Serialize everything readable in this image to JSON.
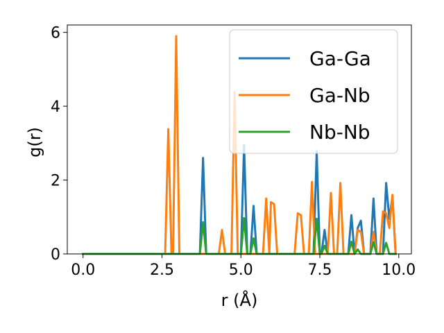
{
  "chart_data": {
    "type": "line",
    "title": "",
    "xlabel": "r (Å)",
    "ylabel": "g(r)",
    "xlim": [
      -0.5,
      10.4
    ],
    "ylim": [
      0,
      6.2
    ],
    "xticks": [
      0.0,
      2.5,
      5.0,
      7.5,
      10.0
    ],
    "xtick_labels": [
      "0.0",
      "2.5",
      "5.0",
      "7.5",
      "10.0"
    ],
    "yticks": [
      0,
      2,
      4,
      6
    ],
    "ytick_labels": [
      "0",
      "2",
      "4",
      "6"
    ],
    "grid": false,
    "legend_position": "top-right",
    "series": [
      {
        "name": "Ga-Ga",
        "color": "#1f77b4",
        "points": [
          [
            0.0,
            0
          ],
          [
            3.7,
            0
          ],
          [
            3.8,
            2.6
          ],
          [
            3.9,
            0
          ],
          [
            5.0,
            0
          ],
          [
            5.1,
            2.95
          ],
          [
            5.2,
            0
          ],
          [
            5.3,
            0
          ],
          [
            5.4,
            1.3
          ],
          [
            5.5,
            0
          ],
          [
            7.3,
            0
          ],
          [
            7.4,
            2.78
          ],
          [
            7.5,
            0
          ],
          [
            7.55,
            0
          ],
          [
            7.65,
            0.65
          ],
          [
            7.75,
            0
          ],
          [
            8.4,
            0
          ],
          [
            8.5,
            1.05
          ],
          [
            8.6,
            0
          ],
          [
            8.7,
            0.7
          ],
          [
            8.8,
            0.9
          ],
          [
            8.9,
            0
          ],
          [
            9.1,
            0
          ],
          [
            9.2,
            1.5
          ],
          [
            9.3,
            0
          ],
          [
            9.5,
            0
          ],
          [
            9.6,
            1.92
          ],
          [
            9.7,
            0.95
          ],
          [
            9.8,
            1.55
          ],
          [
            9.9,
            0
          ]
        ]
      },
      {
        "name": "Ga-Nb",
        "color": "#ff7f0e",
        "points": [
          [
            0.0,
            0
          ],
          [
            2.6,
            0
          ],
          [
            2.7,
            3.38
          ],
          [
            2.8,
            0
          ],
          [
            2.85,
            0
          ],
          [
            2.95,
            5.9
          ],
          [
            3.05,
            0
          ],
          [
            4.3,
            0
          ],
          [
            4.4,
            0.65
          ],
          [
            4.5,
            0
          ],
          [
            4.7,
            0
          ],
          [
            4.8,
            4.38
          ],
          [
            4.9,
            0
          ],
          [
            5.7,
            0
          ],
          [
            5.8,
            1.5
          ],
          [
            5.9,
            0
          ],
          [
            5.95,
            1.4
          ],
          [
            6.05,
            1.35
          ],
          [
            6.15,
            0
          ],
          [
            6.7,
            0
          ],
          [
            6.8,
            1.1
          ],
          [
            6.9,
            1.05
          ],
          [
            7.0,
            0
          ],
          [
            7.15,
            0
          ],
          [
            7.25,
            1.95
          ],
          [
            7.35,
            0
          ],
          [
            7.75,
            0
          ],
          [
            7.85,
            1.65
          ],
          [
            7.95,
            0
          ],
          [
            8.05,
            0
          ],
          [
            8.15,
            1.92
          ],
          [
            8.25,
            0
          ],
          [
            8.6,
            0
          ],
          [
            8.7,
            0.65
          ],
          [
            8.8,
            0.6
          ],
          [
            8.9,
            0
          ],
          [
            9.1,
            0
          ],
          [
            9.2,
            0.6
          ],
          [
            9.3,
            0
          ],
          [
            9.4,
            0
          ],
          [
            9.5,
            1.15
          ],
          [
            9.6,
            1.1
          ],
          [
            9.7,
            0.7
          ],
          [
            9.8,
            1.6
          ],
          [
            9.9,
            0
          ]
        ]
      },
      {
        "name": "Nb-Nb",
        "color": "#2ca02c",
        "points": [
          [
            0.0,
            0
          ],
          [
            3.7,
            0
          ],
          [
            3.8,
            0.86
          ],
          [
            3.9,
            0
          ],
          [
            5.0,
            0
          ],
          [
            5.1,
            0.97
          ],
          [
            5.2,
            0
          ],
          [
            5.3,
            0
          ],
          [
            5.4,
            0.42
          ],
          [
            5.5,
            0
          ],
          [
            7.3,
            0
          ],
          [
            7.4,
            0.95
          ],
          [
            7.5,
            0
          ],
          [
            7.55,
            0
          ],
          [
            7.65,
            0.22
          ],
          [
            7.75,
            0
          ],
          [
            8.4,
            0
          ],
          [
            8.5,
            0.33
          ],
          [
            8.6,
            0
          ],
          [
            8.7,
            0.12
          ],
          [
            8.8,
            0
          ],
          [
            9.1,
            0
          ],
          [
            9.2,
            0.32
          ],
          [
            9.3,
            0
          ],
          [
            9.5,
            0
          ],
          [
            9.6,
            0.3
          ],
          [
            9.7,
            0
          ],
          [
            9.9,
            0
          ]
        ]
      }
    ]
  }
}
